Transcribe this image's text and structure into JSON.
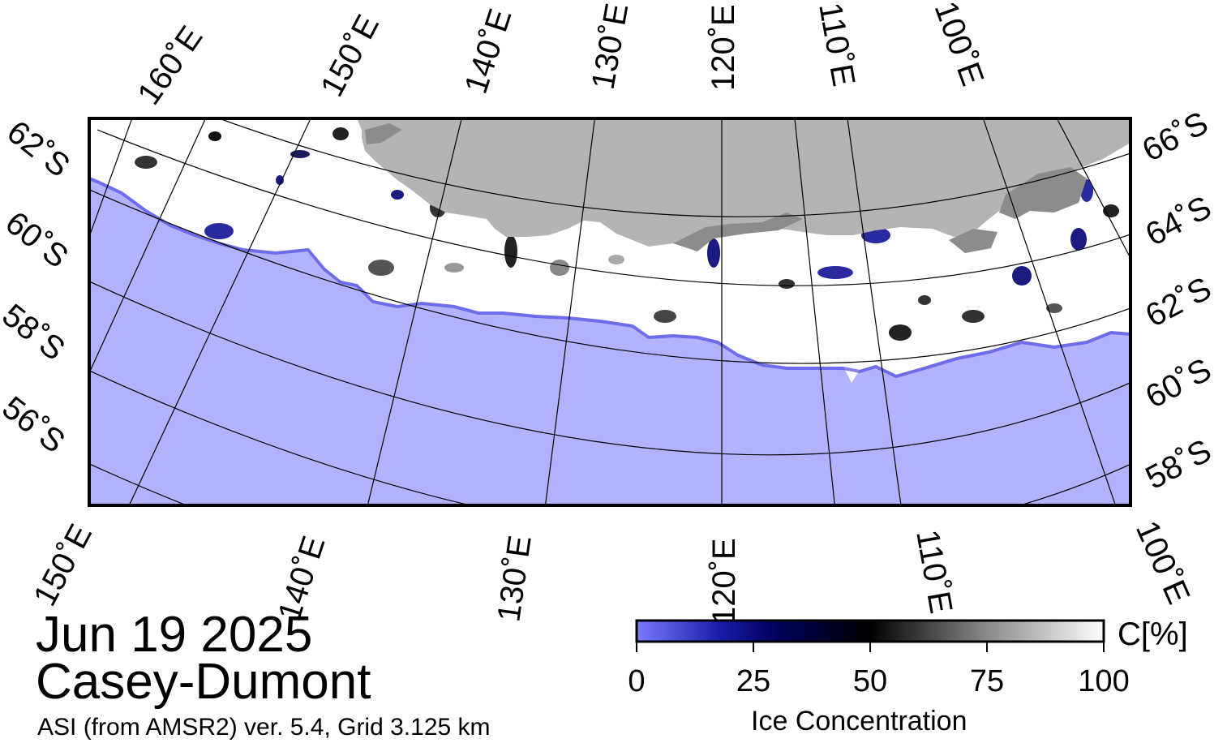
{
  "map": {
    "region": "Casey-Dumont",
    "date": "Jun 19 2025",
    "product": "ASI (from AMSR2) ver. 5.4,  Grid 3.125 km",
    "colors": {
      "open_water": "#b2b2ff",
      "land": "#b4b4b4",
      "ice_shelf": "#8c8c8c",
      "sea_ice_high": "#ffffff",
      "grid_line": "#000000"
    },
    "top_lon_labels": [
      "160˚E",
      "150˚E",
      "140˚E",
      "130˚E",
      "120˚E",
      "110˚E",
      "100˚E"
    ],
    "bottom_lon_labels": [
      "150˚E",
      "140˚E",
      "130˚E",
      "120˚E",
      "110˚E",
      "100˚E"
    ],
    "left_lat_labels": [
      "62˚S",
      "60˚S",
      "58˚S",
      "56˚S"
    ],
    "right_lat_labels": [
      "66˚S",
      "64˚S",
      "62˚S",
      "60˚S",
      "58˚S"
    ]
  },
  "colorbar": {
    "title": "Ice Concentration",
    "unit": "C[%]",
    "ticks": [
      "0",
      "25",
      "50",
      "75",
      "100"
    ],
    "range": [
      0,
      100
    ],
    "stops": [
      {
        "value": 0,
        "color": "#7a7aff"
      },
      {
        "value": 18,
        "color": "#1a1aa8"
      },
      {
        "value": 30,
        "color": "#00005a"
      },
      {
        "value": 50,
        "color": "#000000"
      },
      {
        "value": 75,
        "color": "#8a8a8a"
      },
      {
        "value": 100,
        "color": "#ffffff"
      }
    ]
  }
}
